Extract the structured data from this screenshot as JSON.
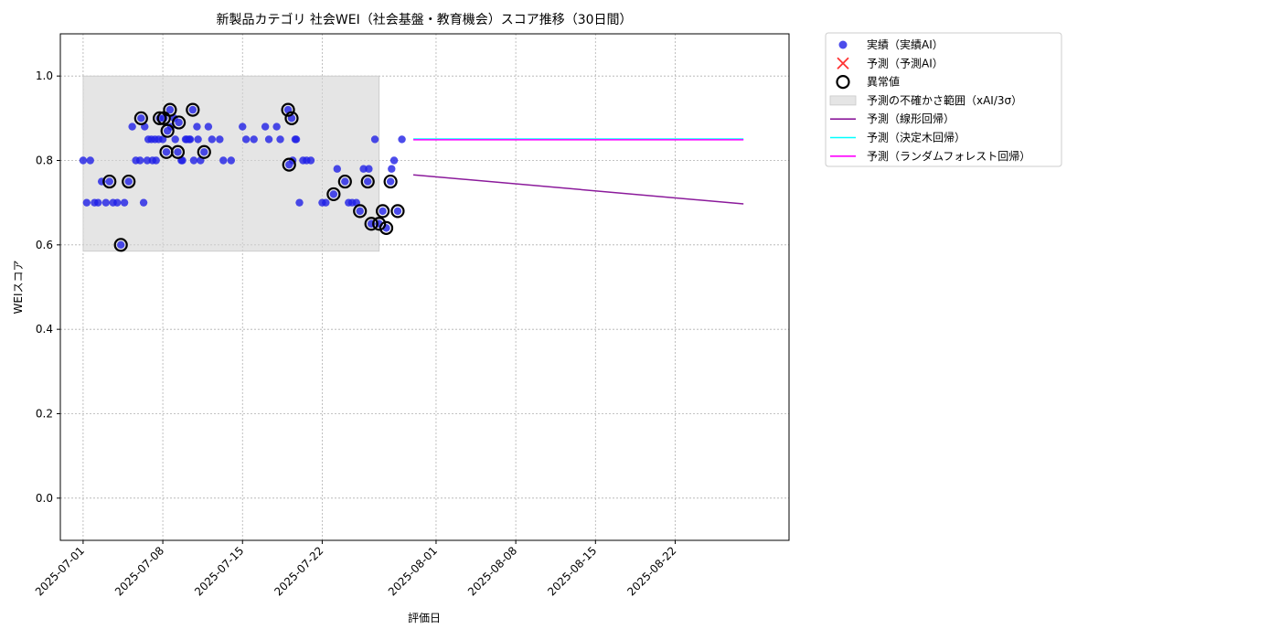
{
  "chart_data": {
    "type": "scatter",
    "title": "新製品カテゴリ 社会WEI（社会基盤・教育機会）スコア推移（30日間）",
    "xlabel": "評価日",
    "ylabel": "WEIスコア",
    "xlim": [
      "2025-06-29",
      "2025-09-01"
    ],
    "ylim": [
      -0.1,
      1.1
    ],
    "grid": true,
    "legend_position": "outside-top-right",
    "x_ticks": [
      "2025-07-01",
      "2025-07-08",
      "2025-07-15",
      "2025-07-22",
      "2025-08-01",
      "2025-08-08",
      "2025-08-15",
      "2025-08-22"
    ],
    "y_ticks": [
      0.0,
      0.2,
      0.4,
      0.6,
      0.8,
      1.0
    ],
    "colors": {
      "actual": "#1f1fe6",
      "predicted_ai": "#ff3333",
      "anomaly": "#000000",
      "uncertainty": "#d3d3d3",
      "linear": "#8b1a9b",
      "tree": "#00ffff",
      "forest": "#ff00ff"
    },
    "uncertainty_band": {
      "x_start": "2025-07-01",
      "x_end": "2025-07-27",
      "y_low": 0.585,
      "y_high": 1.0
    },
    "actual_points": [
      [
        "2025-07-01",
        0.8
      ],
      [
        "2025-07-01",
        0.7
      ],
      [
        "2025-07-01",
        0.8
      ],
      [
        "2025-07-02",
        0.7
      ],
      [
        "2025-07-02",
        0.7
      ],
      [
        "2025-07-02",
        0.75
      ],
      [
        "2025-07-03",
        0.7
      ],
      [
        "2025-07-03",
        0.75
      ],
      [
        "2025-07-03",
        0.7
      ],
      [
        "2025-07-04",
        0.7
      ],
      [
        "2025-07-04",
        0.6
      ],
      [
        "2025-07-04",
        0.7
      ],
      [
        "2025-07-05",
        0.75
      ],
      [
        "2025-07-05",
        0.88
      ],
      [
        "2025-07-05",
        0.8
      ],
      [
        "2025-07-06",
        0.8
      ],
      [
        "2025-07-06",
        0.7
      ],
      [
        "2025-07-06",
        0.8
      ],
      [
        "2025-07-06",
        0.9
      ],
      [
        "2025-07-06",
        0.88
      ],
      [
        "2025-07-06",
        0.85
      ],
      [
        "2025-07-07",
        0.85
      ],
      [
        "2025-07-07",
        0.85
      ],
      [
        "2025-07-07",
        0.85
      ],
      [
        "2025-07-07",
        0.8
      ],
      [
        "2025-07-07",
        0.8
      ],
      [
        "2025-07-07",
        0.9
      ],
      [
        "2025-07-08",
        0.85
      ],
      [
        "2025-07-08",
        0.82
      ],
      [
        "2025-07-08",
        0.92
      ],
      [
        "2025-07-08",
        0.9
      ],
      [
        "2025-07-08",
        0.87
      ],
      [
        "2025-07-08",
        0.88
      ],
      [
        "2025-07-09",
        0.9
      ],
      [
        "2025-07-09",
        0.82
      ],
      [
        "2025-07-09",
        0.8
      ],
      [
        "2025-07-09",
        0.85
      ],
      [
        "2025-07-09",
        0.89
      ],
      [
        "2025-07-09",
        0.8
      ],
      [
        "2025-07-10",
        0.85
      ],
      [
        "2025-07-10",
        0.85
      ],
      [
        "2025-07-10",
        0.92
      ],
      [
        "2025-07-10",
        0.85
      ],
      [
        "2025-07-10",
        0.85
      ],
      [
        "2025-07-10",
        0.8
      ],
      [
        "2025-07-11",
        0.88
      ],
      [
        "2025-07-11",
        0.8
      ],
      [
        "2025-07-11",
        0.82
      ],
      [
        "2025-07-11",
        0.85
      ],
      [
        "2025-07-12",
        0.88
      ],
      [
        "2025-07-12",
        0.85
      ],
      [
        "2025-07-13",
        0.85
      ],
      [
        "2025-07-13",
        0.8
      ],
      [
        "2025-07-14",
        0.8
      ],
      [
        "2025-07-15",
        0.88
      ],
      [
        "2025-07-15",
        0.85
      ],
      [
        "2025-07-16",
        0.85
      ],
      [
        "2025-07-17",
        0.88
      ],
      [
        "2025-07-17",
        0.85
      ],
      [
        "2025-07-18",
        0.88
      ],
      [
        "2025-07-18",
        0.85
      ],
      [
        "2025-07-19",
        0.92
      ],
      [
        "2025-07-19",
        0.9
      ],
      [
        "2025-07-19",
        0.85
      ],
      [
        "2025-07-19",
        0.79
      ],
      [
        "2025-07-19",
        0.8
      ],
      [
        "2025-07-19",
        0.85
      ],
      [
        "2025-07-20",
        0.7
      ],
      [
        "2025-07-20",
        0.8
      ],
      [
        "2025-07-20",
        0.8
      ],
      [
        "2025-07-21",
        0.8
      ],
      [
        "2025-07-22",
        0.7
      ],
      [
        "2025-07-22",
        0.7
      ],
      [
        "2025-07-23",
        0.72
      ],
      [
        "2025-07-23",
        0.78
      ],
      [
        "2025-07-24",
        0.75
      ],
      [
        "2025-07-24",
        0.7
      ],
      [
        "2025-07-24",
        0.7
      ],
      [
        "2025-07-25",
        0.7
      ],
      [
        "2025-07-25",
        0.68
      ],
      [
        "2025-07-25",
        0.78
      ],
      [
        "2025-07-26",
        0.75
      ],
      [
        "2025-07-26",
        0.65
      ],
      [
        "2025-07-26",
        0.85
      ],
      [
        "2025-07-26",
        0.78
      ],
      [
        "2025-07-27",
        0.65
      ],
      [
        "2025-07-27",
        0.68
      ],
      [
        "2025-07-27",
        0.64
      ],
      [
        "2025-07-28",
        0.75
      ],
      [
        "2025-07-28",
        0.8
      ],
      [
        "2025-07-28",
        0.68
      ],
      [
        "2025-07-28",
        0.78
      ],
      [
        "2025-07-29",
        0.85
      ]
    ],
    "anomaly_points": [
      [
        "2025-07-03",
        0.75
      ],
      [
        "2025-07-04",
        0.6
      ],
      [
        "2025-07-05",
        0.75
      ],
      [
        "2025-07-06",
        0.9
      ],
      [
        "2025-07-07",
        0.9
      ],
      [
        "2025-07-08",
        0.82
      ],
      [
        "2025-07-08",
        0.92
      ],
      [
        "2025-07-08",
        0.9
      ],
      [
        "2025-07-08",
        0.87
      ],
      [
        "2025-07-09",
        0.82
      ],
      [
        "2025-07-09",
        0.89
      ],
      [
        "2025-07-10",
        0.92
      ],
      [
        "2025-07-11",
        0.82
      ],
      [
        "2025-07-19",
        0.92
      ],
      [
        "2025-07-19",
        0.9
      ],
      [
        "2025-07-19",
        0.79
      ],
      [
        "2025-07-23",
        0.72
      ],
      [
        "2025-07-24",
        0.75
      ],
      [
        "2025-07-25",
        0.68
      ],
      [
        "2025-07-26",
        0.75
      ],
      [
        "2025-07-26",
        0.65
      ],
      [
        "2025-07-27",
        0.65
      ],
      [
        "2025-07-27",
        0.68
      ],
      [
        "2025-07-27",
        0.64
      ],
      [
        "2025-07-28",
        0.75
      ],
      [
        "2025-07-28",
        0.68
      ]
    ],
    "series": [
      {
        "name": "予測（線形回帰）",
        "color": "#8b1a9b",
        "points": [
          [
            "2025-07-30",
            0.766
          ],
          [
            "2025-08-28",
            0.697
          ]
        ]
      },
      {
        "name": "予測（決定木回帰）",
        "color": "#00ffff",
        "points": [
          [
            "2025-07-30",
            0.851
          ],
          [
            "2025-08-28",
            0.851
          ]
        ]
      },
      {
        "name": "予測（ランダムフォレスト回帰）",
        "color": "#ff00ff",
        "points": [
          [
            "2025-07-30",
            0.849
          ],
          [
            "2025-08-28",
            0.849
          ]
        ]
      }
    ],
    "legend": [
      {
        "label": "実績（実績AI）",
        "kind": "dot"
      },
      {
        "label": "予測（予測AI）",
        "kind": "cross"
      },
      {
        "label": "異常値",
        "kind": "ring"
      },
      {
        "label": "予測の不確かさ範囲（xAI/3σ）",
        "kind": "band"
      },
      {
        "label": "予測（線形回帰）",
        "kind": "line-linear"
      },
      {
        "label": "予測（決定木回帰）",
        "kind": "line-tree"
      },
      {
        "label": "予測（ランダムフォレスト回帰）",
        "kind": "line-forest"
      }
    ]
  }
}
